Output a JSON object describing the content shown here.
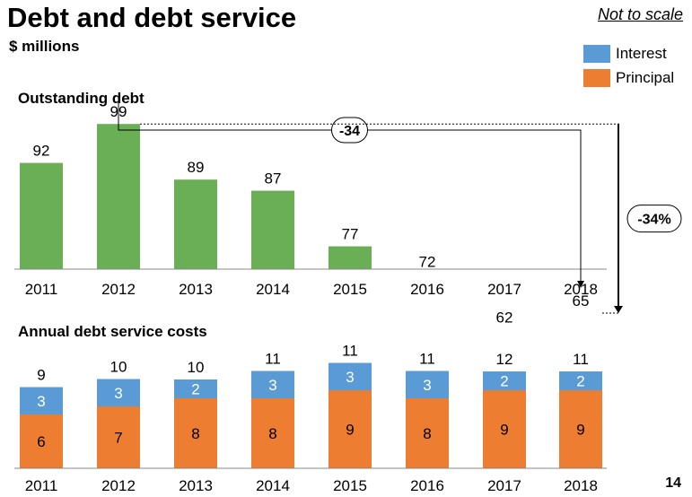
{
  "title": "Debt and debt service",
  "subtitle": "$ millions",
  "scale_note": "Not to scale",
  "legend": [
    {
      "name": "Interest",
      "color": "#5b9bd5"
    },
    {
      "name": "Principal",
      "color": "#ed7d31"
    }
  ],
  "page_number": "14",
  "colors": {
    "bar": "#6aaf55",
    "interest": "#5b9bd5",
    "principal": "#ed7d31"
  },
  "chart_data": [
    {
      "type": "bar",
      "title": "Outstanding debt",
      "categories": [
        "2011",
        "2012",
        "2013",
        "2014",
        "2015",
        "2016",
        "2017",
        "2018"
      ],
      "values": [
        92,
        99,
        89,
        87,
        77,
        72,
        62,
        65
      ],
      "annotations": [
        {
          "label": "-34",
          "from": "2012",
          "to": "2018"
        },
        {
          "label": "-34%",
          "from": "2012",
          "to": "2018"
        }
      ],
      "not_to_scale": true
    },
    {
      "type": "bar",
      "stacked": true,
      "title": "Annual debt service costs",
      "categories": [
        "2011",
        "2012",
        "2013",
        "2014",
        "2015",
        "2016",
        "2017",
        "2018"
      ],
      "series": [
        {
          "name": "Principal",
          "values": [
            6,
            7,
            8,
            8,
            9,
            8,
            9,
            9
          ]
        },
        {
          "name": "Interest",
          "values": [
            3,
            3,
            2,
            3,
            3,
            3,
            2,
            2
          ]
        }
      ],
      "totals": [
        9,
        10,
        10,
        11,
        11,
        11,
        12,
        11
      ],
      "not_to_scale": true
    }
  ]
}
